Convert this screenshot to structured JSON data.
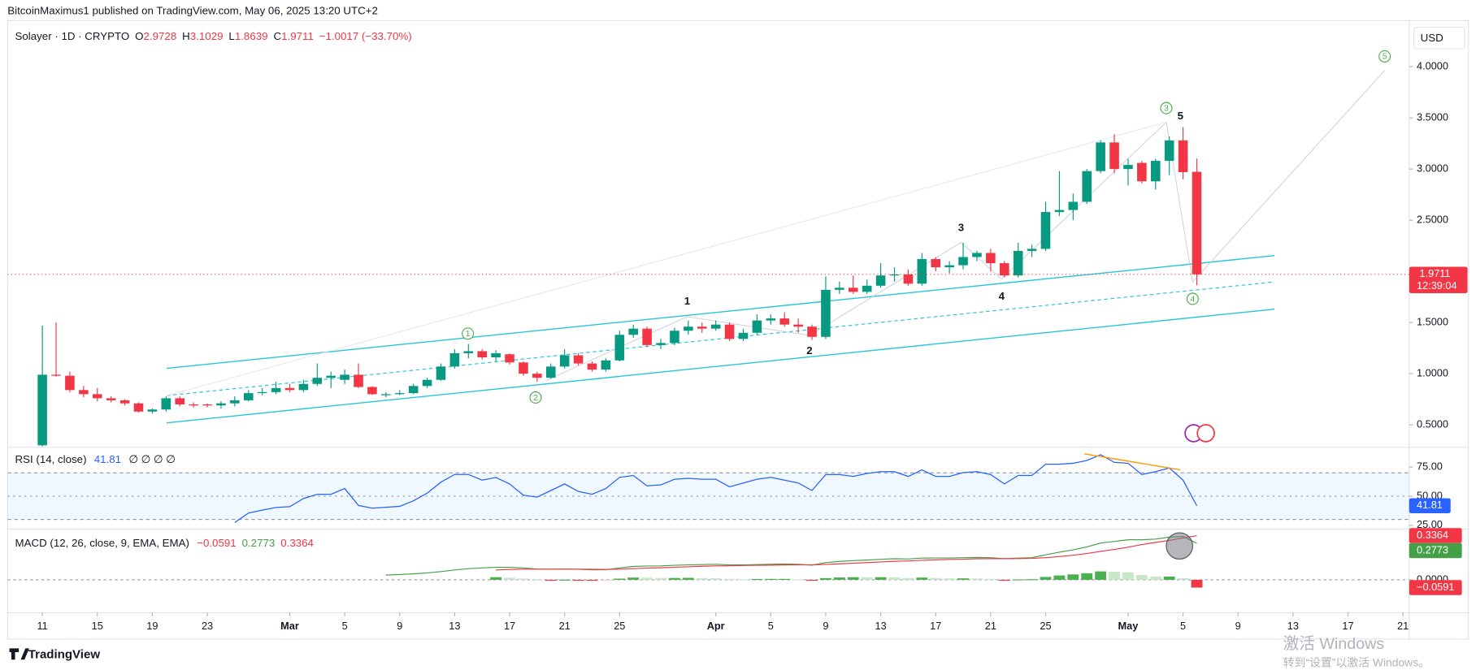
{
  "header": {
    "published": "BitcoinMaximus1 published on TradingView.com, May 06, 2025 13:20 UTC+2"
  },
  "footer": {
    "logo": "TradingView"
  },
  "watermark": {
    "line1": "激活 Windows",
    "line2": "转到“设置”以激活 Windows。"
  },
  "chart_data": [
    {
      "type": "candlestick",
      "currency": "USD",
      "legend": {
        "symbol": "Solayer · 1D · CRYPTO",
        "o_label": "O",
        "o": "2.9728",
        "h_label": "H",
        "h": "3.1029",
        "l_label": "L",
        "l": "1.8639",
        "c_label": "C",
        "c": "1.9711",
        "change": "−1.0017 (−33.70%)"
      },
      "last_label": "1.9711",
      "countdown": "12:39:04",
      "wave_labels": [
        "1",
        "2",
        "3",
        "4",
        "5"
      ],
      "wave_labels_circled": [
        "1",
        "2",
        "3",
        "4",
        "5"
      ],
      "up_color": "#089981",
      "down_color": "#f23645",
      "x": [
        "02-11",
        "02-12",
        "02-13",
        "02-14",
        "02-15",
        "02-16",
        "02-17",
        "02-18",
        "02-19",
        "02-20",
        "02-21",
        "02-22",
        "02-23",
        "02-24",
        "02-25",
        "02-26",
        "02-27",
        "02-28",
        "03-01",
        "03-02",
        "03-03",
        "03-04",
        "03-05",
        "03-06",
        "03-07",
        "03-08",
        "03-09",
        "03-10",
        "03-11",
        "03-12",
        "03-13",
        "03-14",
        "03-15",
        "03-16",
        "03-17",
        "03-18",
        "03-19",
        "03-20",
        "03-21",
        "03-22",
        "03-23",
        "03-24",
        "03-25",
        "03-26",
        "03-27",
        "03-28",
        "03-29",
        "03-30",
        "03-31",
        "04-01",
        "04-02",
        "04-03",
        "04-04",
        "04-05",
        "04-06",
        "04-07",
        "04-08",
        "04-09",
        "04-10",
        "04-11",
        "04-12",
        "04-13",
        "04-14",
        "04-15",
        "04-16",
        "04-17",
        "04-18",
        "04-19",
        "04-20",
        "04-21",
        "04-22",
        "04-23",
        "04-24",
        "04-25",
        "04-26",
        "04-27",
        "04-28",
        "04-29",
        "04-30",
        "05-01",
        "05-02",
        "05-03",
        "05-04",
        "05-05",
        "05-06"
      ],
      "open": [
        0.3,
        0.99,
        0.98,
        0.84,
        0.8,
        0.76,
        0.74,
        0.71,
        0.63,
        0.65,
        0.76,
        0.7,
        0.7,
        0.69,
        0.71,
        0.74,
        0.81,
        0.82,
        0.86,
        0.84,
        0.9,
        0.96,
        0.94,
        0.99,
        0.87,
        0.79,
        0.8,
        0.81,
        0.88,
        0.94,
        1.07,
        1.2,
        1.22,
        1.16,
        1.19,
        1.11,
        1.0,
        0.96,
        1.07,
        1.18,
        1.1,
        1.04,
        1.13,
        1.38,
        1.44,
        1.28,
        1.3,
        1.42,
        1.46,
        1.44,
        1.48,
        1.34,
        1.4,
        1.52,
        1.54,
        1.48,
        1.46,
        1.36,
        1.82,
        1.84,
        1.8,
        1.86,
        1.96,
        1.97,
        1.88,
        2.12,
        2.04,
        2.06,
        2.14,
        2.18,
        2.08,
        1.96,
        2.2,
        2.22,
        2.58,
        2.6,
        2.68,
        2.98,
        3.26,
        3.0,
        3.06,
        2.88,
        3.08,
        3.28,
        2.9728
      ],
      "high": [
        1.47,
        1.5,
        1.02,
        0.88,
        0.86,
        0.78,
        0.75,
        0.72,
        0.66,
        0.78,
        0.78,
        0.72,
        0.71,
        0.73,
        0.78,
        0.84,
        0.86,
        0.92,
        0.9,
        0.94,
        1.1,
        1.02,
        1.04,
        1.1,
        0.88,
        0.82,
        0.84,
        0.9,
        0.96,
        1.1,
        1.24,
        1.29,
        1.24,
        1.23,
        1.2,
        1.12,
        1.02,
        1.1,
        1.24,
        1.2,
        1.12,
        1.15,
        1.42,
        1.48,
        1.46,
        1.34,
        1.45,
        1.52,
        1.5,
        1.52,
        1.5,
        1.44,
        1.58,
        1.58,
        1.6,
        1.54,
        1.48,
        1.95,
        1.9,
        1.96,
        1.92,
        2.08,
        2.04,
        2.02,
        2.18,
        2.14,
        2.1,
        2.28,
        2.2,
        2.22,
        2.1,
        2.28,
        2.26,
        2.68,
        2.98,
        2.76,
        3.0,
        3.28,
        3.34,
        3.1,
        3.08,
        3.1,
        3.32,
        3.41,
        3.1029
      ],
      "low": [
        0.28,
        0.97,
        0.82,
        0.77,
        0.73,
        0.72,
        0.69,
        0.62,
        0.61,
        0.63,
        0.68,
        0.67,
        0.67,
        0.66,
        0.68,
        0.73,
        0.79,
        0.8,
        0.82,
        0.82,
        0.88,
        0.86,
        0.9,
        0.86,
        0.79,
        0.77,
        0.79,
        0.8,
        0.86,
        0.93,
        1.05,
        1.15,
        1.14,
        1.12,
        1.09,
        0.98,
        0.92,
        0.95,
        1.05,
        1.08,
        1.02,
        1.02,
        1.12,
        1.35,
        1.26,
        1.24,
        1.28,
        1.38,
        1.4,
        1.42,
        1.32,
        1.32,
        1.38,
        1.48,
        1.46,
        1.4,
        1.33,
        1.34,
        1.78,
        1.78,
        1.78,
        1.84,
        1.9,
        1.86,
        1.86,
        2.0,
        1.98,
        2.02,
        2.1,
        2.0,
        1.94,
        1.94,
        2.14,
        2.2,
        2.54,
        2.5,
        2.66,
        2.96,
        2.96,
        2.84,
        2.86,
        2.8,
        2.94,
        2.9,
        1.8639
      ],
      "close": [
        0.99,
        0.98,
        0.84,
        0.8,
        0.76,
        0.74,
        0.71,
        0.63,
        0.65,
        0.76,
        0.7,
        0.69,
        0.69,
        0.71,
        0.74,
        0.81,
        0.82,
        0.86,
        0.84,
        0.9,
        0.96,
        0.98,
        0.99,
        0.87,
        0.8,
        0.8,
        0.81,
        0.88,
        0.94,
        1.07,
        1.2,
        1.22,
        1.16,
        1.2,
        1.11,
        1.0,
        0.96,
        1.07,
        1.18,
        1.1,
        1.04,
        1.13,
        1.38,
        1.44,
        1.28,
        1.3,
        1.42,
        1.46,
        1.44,
        1.48,
        1.34,
        1.4,
        1.52,
        1.54,
        1.48,
        1.46,
        1.36,
        1.82,
        1.84,
        1.8,
        1.86,
        1.96,
        1.97,
        1.88,
        2.12,
        2.04,
        2.06,
        2.14,
        2.18,
        2.08,
        1.96,
        2.2,
        2.22,
        2.58,
        2.6,
        2.68,
        2.98,
        3.26,
        3.0,
        3.04,
        2.88,
        3.08,
        3.28,
        2.97,
        1.9711
      ],
      "ylim": [
        0.29,
        4.45
      ],
      "yticks": [
        {
          "value": 0.5,
          "label": "0.5000"
        },
        {
          "value": 1,
          "label": "1.0000"
        },
        {
          "value": 1.5,
          "label": "1.5000"
        },
        {
          "value": 2,
          "label": "2.0000"
        },
        {
          "value": 2.5,
          "label": "2.5000"
        },
        {
          "value": 3,
          "label": "3.0000"
        },
        {
          "value": 3.5,
          "label": "3.5000"
        },
        {
          "value": 4,
          "label": "4.0000"
        }
      ],
      "xticks": [
        {
          "value": "02-11",
          "label": "11"
        },
        {
          "value": "02-15",
          "label": "15"
        },
        {
          "value": "02-19",
          "label": "19"
        },
        {
          "value": "02-23",
          "label": "23"
        },
        {
          "value": "03-01",
          "label": "Mar"
        },
        {
          "value": "03-05",
          "label": "5"
        },
        {
          "value": "03-09",
          "label": "9"
        },
        {
          "value": "03-13",
          "label": "13"
        },
        {
          "value": "03-17",
          "label": "17"
        },
        {
          "value": "03-21",
          "label": "21"
        },
        {
          "value": "03-25",
          "label": "25"
        },
        {
          "value": "04-01",
          "label": "Apr"
        },
        {
          "value": "04-05",
          "label": "5"
        },
        {
          "value": "04-09",
          "label": "9"
        },
        {
          "value": "04-13",
          "label": "13"
        },
        {
          "value": "04-17",
          "label": "17"
        },
        {
          "value": "04-21",
          "label": "21"
        },
        {
          "value": "04-25",
          "label": "25"
        },
        {
          "value": "05-01",
          "label": "May"
        },
        {
          "value": "05-05",
          "label": "5"
        },
        {
          "value": "05-09",
          "label": "9"
        },
        {
          "value": "05-13",
          "label": "13"
        },
        {
          "value": "05-17",
          "label": "17"
        },
        {
          "value": "05-21",
          "label": "21"
        }
      ],
      "grid": false
    },
    {
      "type": "line",
      "title": "RSI (14, close)",
      "value_label": "41.81",
      "legend_extra": "∅ ∅ ∅ ∅",
      "color": "#2962ff",
      "values": [
        null,
        null,
        null,
        null,
        null,
        null,
        null,
        null,
        null,
        null,
        null,
        null,
        null,
        null,
        27.4,
        35.5,
        38,
        40.3,
        41,
        48,
        51.6,
        51.6,
        56.5,
        42,
        39.7,
        40.5,
        41.3,
        46,
        52.6,
        62,
        68.6,
        68.6,
        63.7,
        66,
        60.5,
        50.8,
        49.2,
        54.8,
        60.5,
        54,
        51.6,
        56.5,
        66.1,
        67.7,
        58.9,
        59.7,
        64.5,
        65.3,
        64.5,
        64.5,
        58,
        61.3,
        64.5,
        66.1,
        63.7,
        61.3,
        54.8,
        68.5,
        68.5,
        66.9,
        69.4,
        71,
        71,
        66.9,
        72.6,
        66.9,
        66.9,
        70.2,
        71,
        68.5,
        60.5,
        67.7,
        67.7,
        77.4,
        77.4,
        78.2,
        80.6,
        85.5,
        79,
        78.2,
        68.5,
        71,
        74.2,
        63.7,
        41.81
      ],
      "levels": [
        30,
        50,
        70
      ],
      "ylim": [
        22.6,
        91.1
      ],
      "yticks": [
        {
          "value": 25,
          "label": "25.00"
        },
        {
          "value": 50,
          "label": "50.00"
        },
        {
          "value": 75,
          "label": "75.00"
        }
      ]
    },
    {
      "type": "macd",
      "title": "MACD (12, 26, close, 9, EMA, EMA)",
      "histogram_label": "−0.0591",
      "macd_label": "0.2773",
      "signal_label": "0.3364",
      "macd_color": "#43a047",
      "signal_color": "#f23645",
      "histogram_colors": [
        "#4caf50",
        "#c8e6c9",
        "#ffcdd2",
        "#f23645"
      ],
      "macd": [
        null,
        null,
        null,
        null,
        null,
        null,
        null,
        null,
        null,
        null,
        null,
        null,
        null,
        null,
        null,
        null,
        null,
        null,
        null,
        null,
        null,
        null,
        null,
        null,
        null,
        0.036,
        0.04,
        0.045,
        0.052,
        0.062,
        0.075,
        0.085,
        0.09,
        0.095,
        0.095,
        0.09,
        0.082,
        0.08,
        0.082,
        0.08,
        0.076,
        0.077,
        0.09,
        0.102,
        0.105,
        0.106,
        0.11,
        0.114,
        0.116,
        0.118,
        0.114,
        0.113,
        0.116,
        0.119,
        0.12,
        0.118,
        0.112,
        0.13,
        0.14,
        0.146,
        0.15,
        0.156,
        0.16,
        0.158,
        0.165,
        0.166,
        0.166,
        0.168,
        0.17,
        0.168,
        0.16,
        0.165,
        0.168,
        0.19,
        0.21,
        0.228,
        0.25,
        0.28,
        0.292,
        0.305,
        0.305,
        0.31,
        0.325,
        0.33,
        0.2773
      ],
      "signal": [
        null,
        null,
        null,
        null,
        null,
        null,
        null,
        null,
        null,
        null,
        null,
        null,
        null,
        null,
        null,
        null,
        null,
        null,
        null,
        null,
        null,
        null,
        null,
        null,
        null,
        null,
        null,
        null,
        null,
        null,
        null,
        null,
        null,
        0.075,
        0.079,
        0.081,
        0.081,
        0.081,
        0.081,
        0.081,
        0.08,
        0.079,
        0.081,
        0.085,
        0.089,
        0.092,
        0.096,
        0.099,
        0.103,
        0.106,
        0.107,
        0.109,
        0.11,
        0.112,
        0.113,
        0.114,
        0.114,
        0.117,
        0.122,
        0.126,
        0.131,
        0.136,
        0.141,
        0.144,
        0.148,
        0.152,
        0.155,
        0.157,
        0.16,
        0.161,
        0.161,
        0.162,
        0.163,
        0.168,
        0.177,
        0.187,
        0.2,
        0.216,
        0.231,
        0.248,
        0.268,
        0.285,
        0.3,
        0.318,
        0.3364
      ],
      "histogram": [
        null,
        null,
        null,
        null,
        null,
        null,
        null,
        null,
        null,
        null,
        null,
        null,
        null,
        null,
        null,
        null,
        null,
        null,
        null,
        null,
        null,
        null,
        null,
        null,
        null,
        null,
        null,
        null,
        null,
        null,
        null,
        null,
        null,
        0.02,
        0.016,
        0.009,
        0.001,
        -0.001,
        0.001,
        -0.001,
        -0.004,
        -0.002,
        0.009,
        0.017,
        0.016,
        0.014,
        0.014,
        0.015,
        0.013,
        0.012,
        0.007,
        0.004,
        0.006,
        0.007,
        0.007,
        0.004,
        -0.002,
        0.013,
        0.018,
        0.02,
        0.019,
        0.02,
        0.019,
        0.014,
        0.017,
        0.014,
        0.011,
        0.011,
        0.01,
        0.007,
        -0.001,
        0.003,
        0.005,
        0.022,
        0.033,
        0.041,
        0.05,
        0.064,
        0.061,
        0.057,
        0.037,
        0.025,
        0.025,
        0.012,
        -0.0591
      ],
      "ylim": [
        -0.25,
        0.379
      ],
      "yticks": [
        {
          "value": 0,
          "label": "0.0000"
        }
      ]
    }
  ]
}
